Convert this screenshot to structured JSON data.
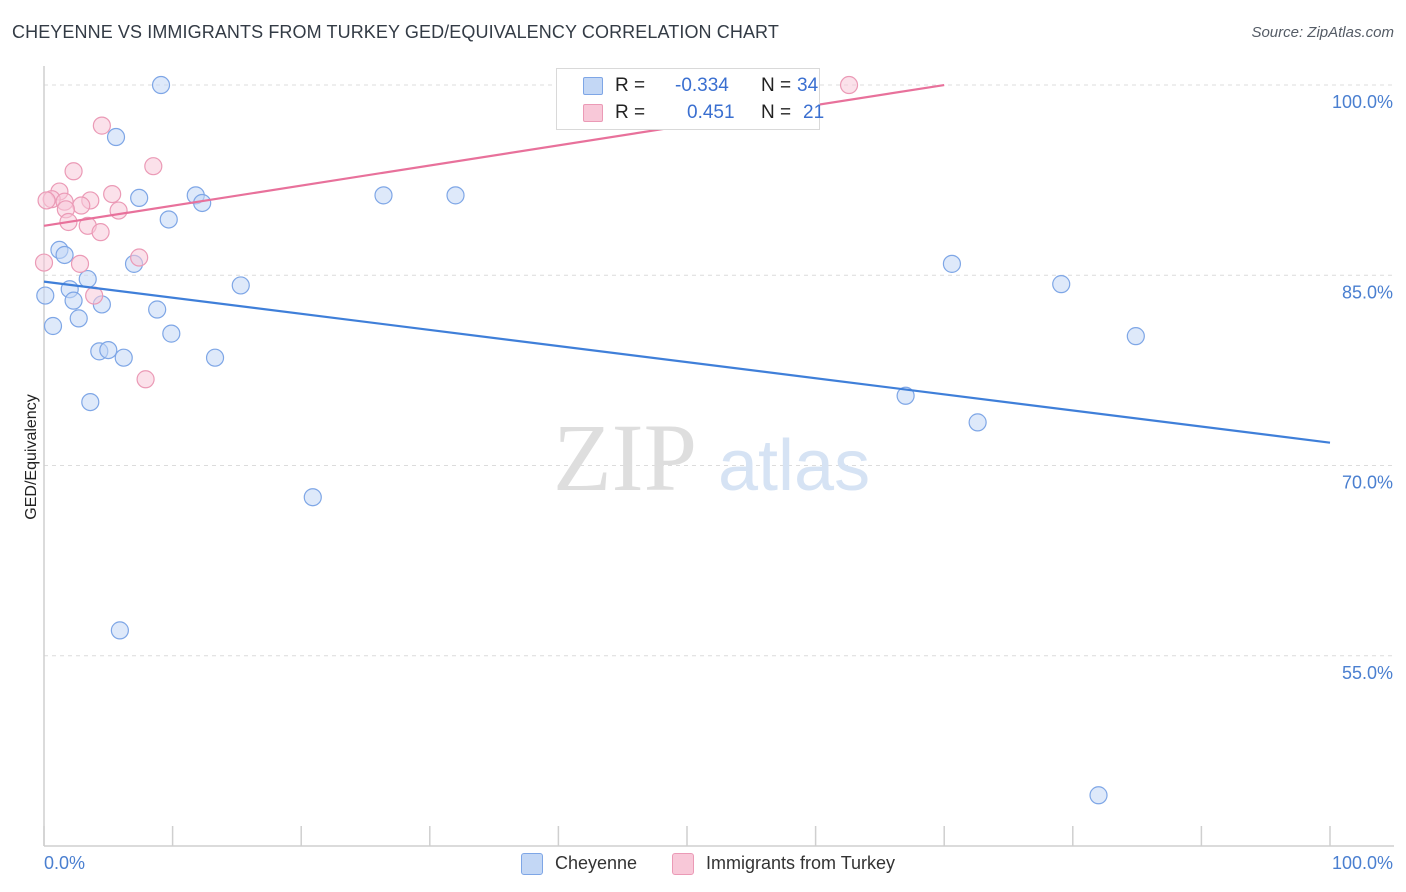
{
  "title": "CHEYENNE VS IMMIGRANTS FROM TURKEY GED/EQUIVALENCY CORRELATION CHART",
  "source": "Source: ZipAtlas.com",
  "watermark": {
    "zip": "ZIP",
    "atlas": "atlas"
  },
  "colors": {
    "blue": "#3f7fd9",
    "blue_fill": "#c3d7f5",
    "pink": "#e8719b",
    "pink_fill": "#f8c8d8",
    "axis_text": "#4a7fd0"
  },
  "legend": {
    "r_label": "R =",
    "n_label": "N =",
    "rows": [
      {
        "r": "-0.334",
        "n": "34",
        "series": "Cheyenne"
      },
      {
        "r": "0.451",
        "n": "21",
        "series": "Immigrants from Turkey"
      }
    ]
  },
  "bottom_legend": [
    "Cheyenne",
    "Immigrants from Turkey"
  ],
  "chart_data": {
    "type": "scatter",
    "title": "CHEYENNE VS IMMIGRANTS FROM TURKEY GED/EQUIVALENCY CORRELATION CHART",
    "xlabel": "",
    "ylabel": "GED/Equivalency",
    "xlim": [
      0,
      100
    ],
    "ylim": [
      40,
      101.5
    ],
    "x_tick_labels": [
      "0.0%",
      "100.0%"
    ],
    "y_ticks": [
      55,
      70,
      85,
      100
    ],
    "y_tick_labels": [
      "55.0%",
      "70.0%",
      "85.0%",
      "100.0%"
    ],
    "grid": true,
    "legend_position": "top-center",
    "series": [
      {
        "name": "Cheyenne",
        "color": "#3f7fd9",
        "points": [
          [
            9.1,
            100.0
          ],
          [
            5.6,
            95.9
          ],
          [
            7.4,
            91.1
          ],
          [
            11.8,
            91.3
          ],
          [
            12.3,
            90.7
          ],
          [
            9.7,
            89.4
          ],
          [
            26.4,
            91.3
          ],
          [
            32.0,
            91.3
          ],
          [
            1.2,
            87.0
          ],
          [
            1.6,
            86.6
          ],
          [
            7.0,
            85.9
          ],
          [
            3.4,
            84.7
          ],
          [
            15.3,
            84.2
          ],
          [
            0.1,
            83.4
          ],
          [
            2.0,
            83.9
          ],
          [
            2.3,
            83.0
          ],
          [
            4.5,
            82.7
          ],
          [
            8.8,
            82.3
          ],
          [
            2.7,
            81.6
          ],
          [
            0.7,
            81.0
          ],
          [
            9.9,
            80.4
          ],
          [
            4.3,
            79.0
          ],
          [
            5.0,
            79.1
          ],
          [
            6.2,
            78.5
          ],
          [
            13.3,
            78.5
          ],
          [
            3.6,
            75.0
          ],
          [
            20.9,
            67.5
          ],
          [
            5.9,
            57.0
          ],
          [
            70.6,
            85.9
          ],
          [
            79.1,
            84.3
          ],
          [
            84.9,
            80.2
          ],
          [
            67.0,
            75.5
          ],
          [
            72.6,
            73.4
          ],
          [
            82.0,
            44.0
          ]
        ],
        "trend": {
          "x": [
            0,
            100
          ],
          "y": [
            84.5,
            71.8
          ]
        }
      },
      {
        "name": "Immigrants from Turkey",
        "color": "#e8719b",
        "points": [
          [
            62.6,
            100.0
          ],
          [
            4.5,
            96.8
          ],
          [
            8.5,
            93.6
          ],
          [
            2.3,
            93.2
          ],
          [
            1.2,
            91.6
          ],
          [
            0.6,
            91.0
          ],
          [
            1.6,
            90.8
          ],
          [
            3.6,
            90.9
          ],
          [
            5.3,
            91.4
          ],
          [
            2.9,
            90.5
          ],
          [
            1.7,
            90.2
          ],
          [
            5.8,
            90.1
          ],
          [
            1.9,
            89.2
          ],
          [
            3.4,
            88.9
          ],
          [
            4.4,
            88.4
          ],
          [
            7.4,
            86.4
          ],
          [
            0.0,
            86.0
          ],
          [
            2.8,
            85.9
          ],
          [
            3.9,
            83.4
          ],
          [
            7.9,
            76.8
          ],
          [
            0.2,
            90.9
          ]
        ],
        "trend": {
          "x": [
            0,
            70
          ],
          "y": [
            88.9,
            100.0
          ]
        }
      }
    ]
  }
}
